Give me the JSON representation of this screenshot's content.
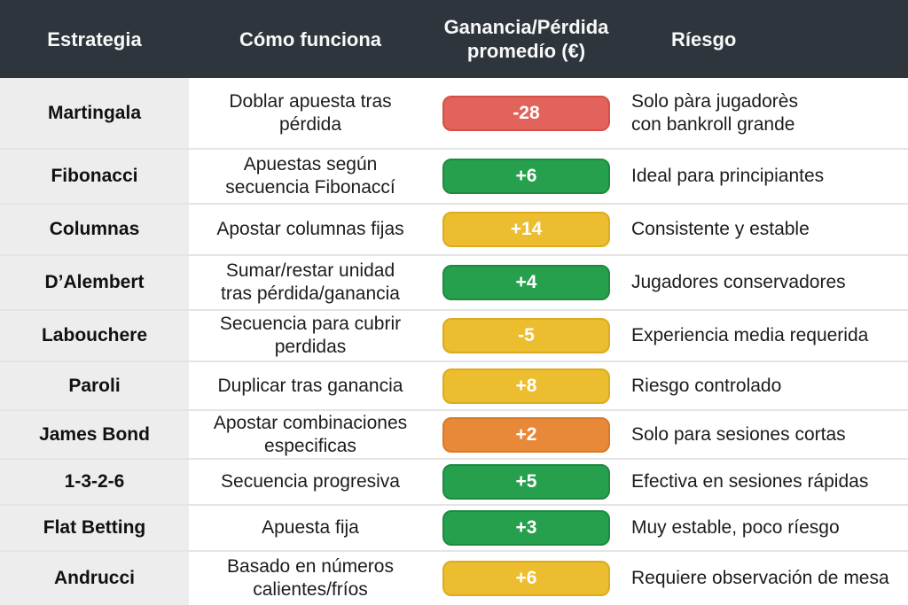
{
  "chart_data": {
    "type": "table",
    "columns": [
      "Estrategia",
      "Cómo funciona",
      "Ganancia/Pérdida\npromedío (€)",
      "Ríesgo"
    ],
    "rows": [
      {
        "estrategia": "Martingala",
        "como_funciona": "Doblar apuesta tras\npérdida",
        "ganancia_perdida": "-28",
        "valor": -28,
        "color": "red",
        "riesgo": "Solo pàra jugadorès\ncon bankroll grande"
      },
      {
        "estrategia": "Fibonacci",
        "como_funciona": "Apuestas según\nsecuencia Fibonaccí",
        "ganancia_perdida": "+6",
        "valor": 6,
        "color": "green",
        "riesgo": "Ideal para principiantes"
      },
      {
        "estrategia": "Columnas",
        "como_funciona": "Apostar columnas fijas",
        "ganancia_perdida": "+14",
        "valor": 14,
        "color": "yellow",
        "riesgo": "Consistente y estable"
      },
      {
        "estrategia": "D’Alembert",
        "como_funciona": "Sumar/restar unidad\ntras pérdida/ganancia",
        "ganancia_perdida": "+4",
        "valor": 4,
        "color": "green",
        "riesgo": "Jugadores conservadores"
      },
      {
        "estrategia": "Labouchere",
        "como_funciona": "Secuencia para cubrir\nperdidas",
        "ganancia_perdida": "-5",
        "valor": -5,
        "color": "yellow",
        "riesgo": "Experiencia media requerida"
      },
      {
        "estrategia": "Paroli",
        "como_funciona": "Duplicar tras ganancia",
        "ganancia_perdida": "+8",
        "valor": 8,
        "color": "yellow",
        "riesgo": "Riesgo controlado"
      },
      {
        "estrategia": "James Bond",
        "como_funciona": "Apostar combinaciones\nespecificas",
        "ganancia_perdida": "+2",
        "valor": 2,
        "color": "orange",
        "riesgo": "Solo para sesiones cortas"
      },
      {
        "estrategia": "1-3-2-6",
        "como_funciona": "Secuencia progresiva",
        "ganancia_perdida": "+5",
        "valor": 5,
        "color": "green",
        "riesgo": "Efectiva en sesiones rápidas"
      },
      {
        "estrategia": "Flat Betting",
        "como_funciona": "Apuesta fija",
        "ganancia_perdida": "+3",
        "valor": 3,
        "color": "green",
        "riesgo": "Muy estable, poco ríesgo"
      },
      {
        "estrategia": "Andrucci",
        "como_funciona": "Basado en números\ncalientes/fríos",
        "ganancia_perdida": "+6",
        "valor": 6,
        "color": "yellow",
        "riesgo": "Requiere observación de mesa"
      }
    ]
  },
  "colors": {
    "header_bg": "#2e353c",
    "header_text": "#f7f8f8",
    "strategy_col_bg": "#ededed",
    "row_bg": "#ffffff",
    "divider": "#e4e4e4",
    "text": "#1c1c1c",
    "badge_text": "#ffffff",
    "red": "#e2635b",
    "red_border": "#d44f47",
    "green": "#27a04e",
    "green_border": "#1d8a40",
    "yellow": "#ecbd2f",
    "yellow_border": "#dcab1e",
    "orange": "#e8893a",
    "orange_border": "#d97a29"
  }
}
